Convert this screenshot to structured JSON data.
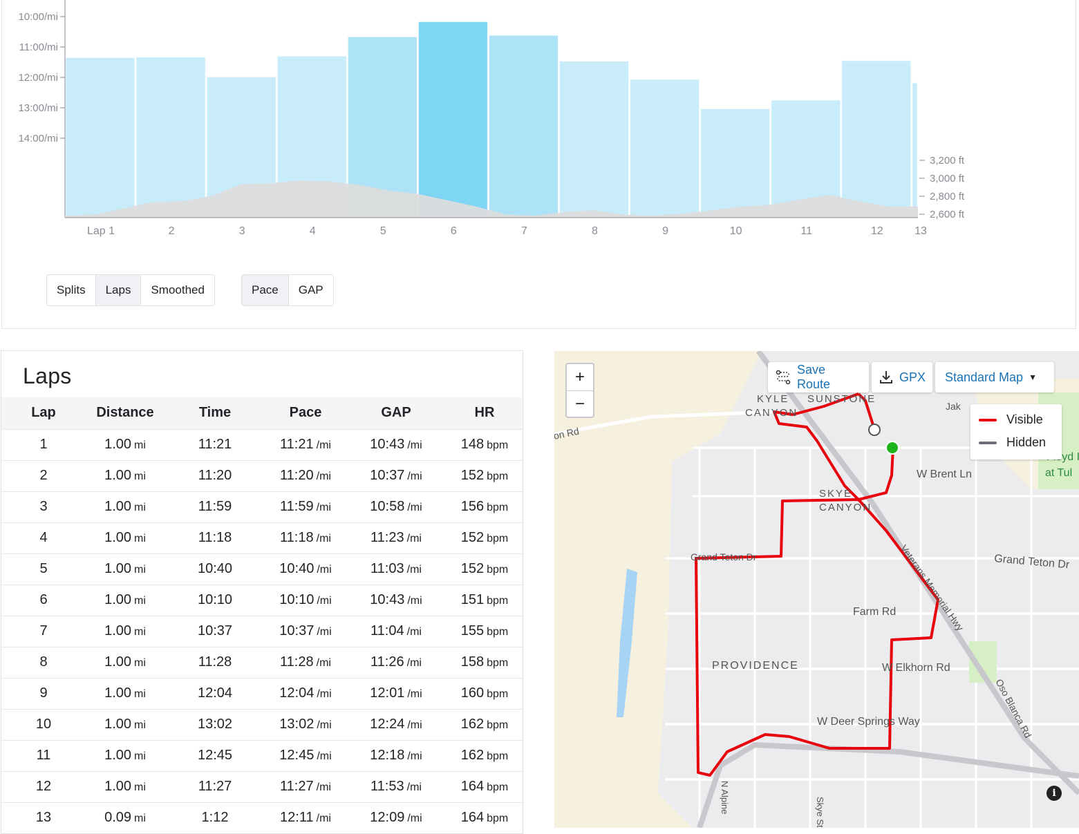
{
  "chart_data": {
    "type": "bar",
    "categories": [
      "Lap 1",
      "2",
      "3",
      "4",
      "5",
      "6",
      "7",
      "8",
      "9",
      "10",
      "11",
      "12",
      "13"
    ],
    "values_pace": [
      "11:21",
      "11:20",
      "11:59",
      "11:18",
      "10:40",
      "10:10",
      "10:37",
      "11:28",
      "12:04",
      "13:02",
      "12:45",
      "11:27",
      "12:11"
    ],
    "values_pace_seconds": [
      681,
      680,
      719,
      678,
      640,
      610,
      637,
      688,
      724,
      782,
      765,
      687,
      731
    ],
    "y_ticks": [
      "10:00/mi",
      "11:00/mi",
      "12:00/mi",
      "13:00/mi",
      "14:00/mi"
    ],
    "y_tick_seconds": [
      600,
      660,
      720,
      780,
      840
    ],
    "elevation_ticks": [
      "3,200 ft",
      "3,000 ft",
      "2,800 ft",
      "2,600 ft"
    ],
    "elevation_tick_values": [
      3200,
      3000,
      2800,
      2600
    ],
    "elevation_profile_ft": [
      2600,
      2610,
      2680,
      2750,
      2760,
      2820,
      2950,
      2960,
      2990,
      2980,
      2940,
      2880,
      2840,
      2770,
      2700,
      2610,
      2600,
      2640,
      2660,
      2610,
      2600,
      2620,
      2660,
      2700,
      2720,
      2780,
      2830,
      2760,
      2700,
      2700
    ],
    "highlighted": "6"
  },
  "toggles": {
    "group1": [
      {
        "label": "Splits",
        "active": false
      },
      {
        "label": "Laps",
        "active": true
      },
      {
        "label": "Smoothed",
        "active": false
      }
    ],
    "group2": [
      {
        "label": "Pace",
        "active": true
      },
      {
        "label": "GAP",
        "active": false
      }
    ]
  },
  "laps": {
    "title": "Laps",
    "headers": [
      "Lap",
      "Distance",
      "Time",
      "Pace",
      "GAP",
      "HR"
    ],
    "units": {
      "distance": "mi",
      "pace": "/mi",
      "gap": "/mi",
      "hr": "bpm"
    },
    "rows": [
      {
        "lap": "1",
        "distance": "1.00",
        "time": "11:21",
        "pace": "11:21",
        "gap": "10:43",
        "hr": "148"
      },
      {
        "lap": "2",
        "distance": "1.00",
        "time": "11:20",
        "pace": "11:20",
        "gap": "10:37",
        "hr": "152"
      },
      {
        "lap": "3",
        "distance": "1.00",
        "time": "11:59",
        "pace": "11:59",
        "gap": "10:58",
        "hr": "156"
      },
      {
        "lap": "4",
        "distance": "1.00",
        "time": "11:18",
        "pace": "11:18",
        "gap": "11:23",
        "hr": "152"
      },
      {
        "lap": "5",
        "distance": "1.00",
        "time": "10:40",
        "pace": "10:40",
        "gap": "11:03",
        "hr": "152"
      },
      {
        "lap": "6",
        "distance": "1.00",
        "time": "10:10",
        "pace": "10:10",
        "gap": "10:43",
        "hr": "151"
      },
      {
        "lap": "7",
        "distance": "1.00",
        "time": "10:37",
        "pace": "10:37",
        "gap": "11:04",
        "hr": "155"
      },
      {
        "lap": "8",
        "distance": "1.00",
        "time": "11:28",
        "pace": "11:28",
        "gap": "11:26",
        "hr": "158"
      },
      {
        "lap": "9",
        "distance": "1.00",
        "time": "12:04",
        "pace": "12:04",
        "gap": "12:01",
        "hr": "160"
      },
      {
        "lap": "10",
        "distance": "1.00",
        "time": "13:02",
        "pace": "13:02",
        "gap": "12:24",
        "hr": "162"
      },
      {
        "lap": "11",
        "distance": "1.00",
        "time": "12:45",
        "pace": "12:45",
        "gap": "12:18",
        "hr": "162"
      },
      {
        "lap": "12",
        "distance": "1.00",
        "time": "11:27",
        "pace": "11:27",
        "gap": "11:53",
        "hr": "164"
      },
      {
        "lap": "13",
        "distance": "0.09",
        "time": "1:12",
        "pace": "12:11",
        "gap": "12:09",
        "hr": "164"
      }
    ]
  },
  "map": {
    "zoom_in": "+",
    "zoom_out": "−",
    "save_route": "Save Route",
    "gpx": "GPX",
    "map_type": "Standard Map",
    "legend": [
      {
        "label": "Visible",
        "color": "#e8000b"
      },
      {
        "label": "Hidden",
        "color": "#6d6d78"
      }
    ],
    "labels": [
      "KYLE",
      "CANYON",
      "SUNSTONE",
      "W Brent Ln",
      "SKYE",
      "CANYON",
      "Grand Teton Dr",
      "Grand Teton Dr",
      "Farm Rd",
      "PROVIDENCE",
      "W Elkhorn Rd",
      "W Deer Springs Way",
      "Veterans Memorial Hwy",
      "Oso Blanca Rd",
      "N Alpine",
      "Skye St",
      "on Rd",
      "Jak",
      "Floyd I",
      "at Tul"
    ],
    "info": "i"
  },
  "colors": {
    "bar": "#c8ecfa",
    "bar_mid": "#aee3f7",
    "bar_active": "#7fd5f4",
    "elevation": "#dcdcdc",
    "route": "#e8000b"
  }
}
